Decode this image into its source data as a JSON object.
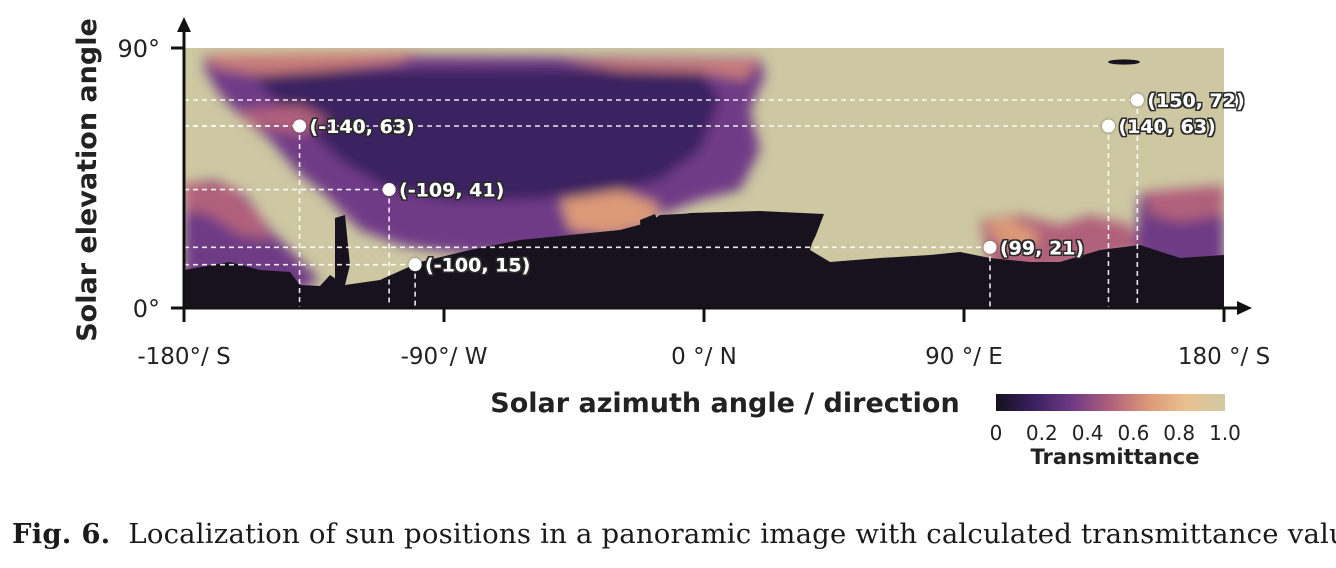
{
  "chart_data": {
    "type": "heatmap",
    "xlabel": "Solar azimuth angle / direction",
    "ylabel": "Solar elevation angle",
    "xlim": [
      -180,
      180
    ],
    "ylim": [
      0,
      90
    ],
    "x_ticks": [
      {
        "value": -180,
        "label": "-180°/ S"
      },
      {
        "value": -90,
        "label": "-90°/ W"
      },
      {
        "value": 0,
        "label": "0 °/ N"
      },
      {
        "value": 90,
        "label": "90 °/ E"
      },
      {
        "value": 180,
        "label": "180 °/ S"
      }
    ],
    "y_ticks": [
      {
        "value": 0,
        "label": "0°"
      },
      {
        "value": 90,
        "label": "90°"
      }
    ],
    "sun_positions": [
      {
        "x": -140,
        "y": 63,
        "label": "(-140, 63)"
      },
      {
        "x": -109,
        "y": 41,
        "label": "(-109, 41)"
      },
      {
        "x": -100,
        "y": 15,
        "label": "(-100, 15)"
      },
      {
        "x": 99,
        "y": 21,
        "label": "(99, 21)"
      },
      {
        "x": 140,
        "y": 63,
        "label": "(140, 63)"
      },
      {
        "x": 150,
        "y": 72,
        "label": "(150, 72)"
      }
    ],
    "colorbar": {
      "label": "Transmittance",
      "range": [
        0,
        1
      ],
      "ticks": [
        "0",
        "0.2",
        "0.4",
        "0.6",
        "0.8",
        "1.0"
      ],
      "colors": [
        "#15111f",
        "#3b2160",
        "#6e3a85",
        "#b0607a",
        "#dc9a78",
        "#e9c08f",
        "#cfc9a3"
      ]
    },
    "field_colors": {
      "sky": "#cdc8a2",
      "obstacle": "#17121e"
    }
  },
  "caption": {
    "label": "Fig. 6.",
    "text": "Localization of sun positions in a panoramic image with calculated transmittance values."
  }
}
